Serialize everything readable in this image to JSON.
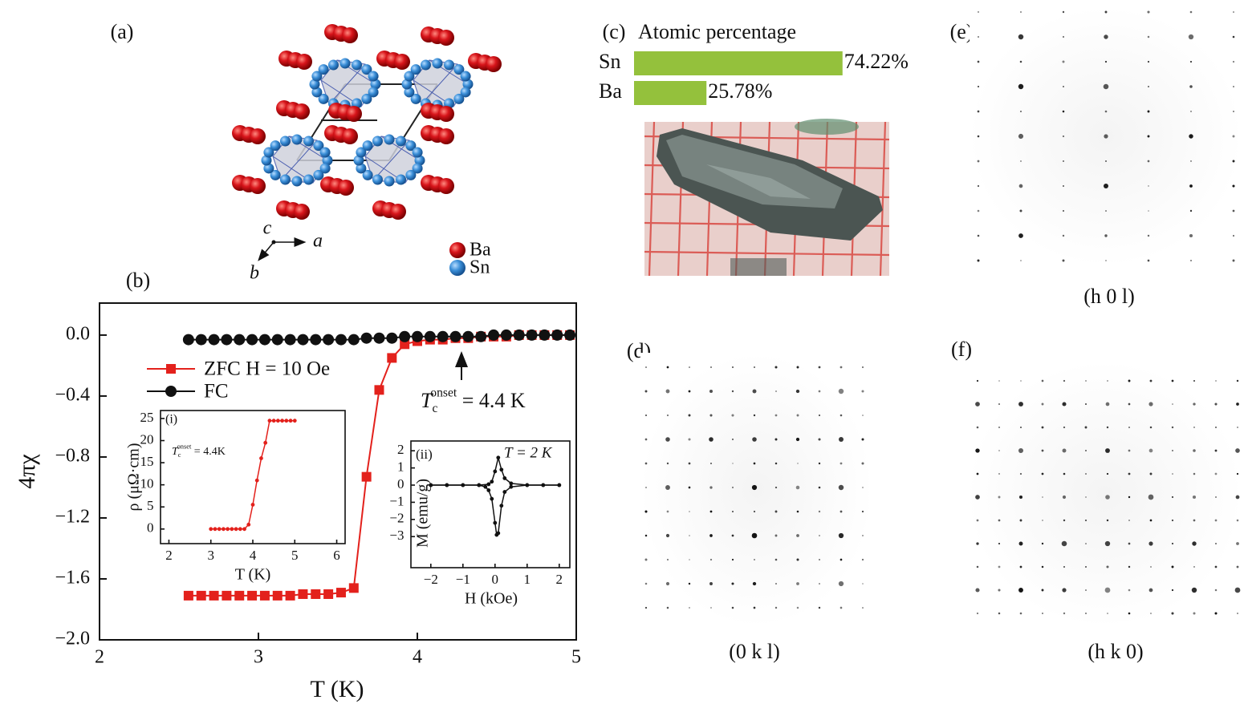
{
  "chart_data": [
    {
      "type": "line",
      "x_label": "T (K)",
      "y_label": "4πχ",
      "x": [
        2.56,
        2.64,
        2.72,
        2.8,
        2.88,
        2.96,
        3.04,
        3.12,
        3.2,
        3.28,
        3.36,
        3.44,
        3.52,
        3.6,
        3.68,
        3.76,
        3.84,
        3.92,
        4.0,
        4.08,
        4.16,
        4.24,
        4.32,
        4.4,
        4.48,
        4.56,
        4.64,
        4.72,
        4.8,
        4.88,
        4.96
      ],
      "series": [
        {
          "name": "ZFC H = 10 Oe",
          "color": "#e3211c",
          "marker": "square",
          "values": [
            -1.71,
            -1.71,
            -1.71,
            -1.71,
            -1.71,
            -1.71,
            -1.71,
            -1.71,
            -1.71,
            -1.7,
            -1.7,
            -1.7,
            -1.69,
            -1.66,
            -0.93,
            -0.36,
            -0.15,
            -0.06,
            -0.04,
            -0.03,
            -0.03,
            -0.02,
            -0.02,
            -0.01,
            -0.01,
            -0.01,
            0.0,
            0.0,
            0.0,
            0.0,
            0.0
          ]
        },
        {
          "name": "FC",
          "color": "#111111",
          "marker": "circle",
          "values": [
            -0.03,
            -0.03,
            -0.03,
            -0.03,
            -0.03,
            -0.03,
            -0.03,
            -0.03,
            -0.03,
            -0.03,
            -0.03,
            -0.03,
            -0.03,
            -0.03,
            -0.02,
            -0.02,
            -0.02,
            -0.01,
            -0.01,
            -0.01,
            -0.01,
            -0.01,
            -0.01,
            -0.01,
            0.0,
            0.0,
            0.0,
            0.0,
            0.0,
            0.0,
            0.0
          ]
        }
      ],
      "xlim": [
        2,
        5
      ],
      "ylim": [
        -2.0,
        0.21
      ],
      "xticks": [
        2,
        3,
        4,
        5
      ],
      "yticks": [
        {
          "value": 0.0,
          "label": "0.0"
        },
        {
          "value": -0.4,
          "label": "−0.4"
        },
        {
          "value": -0.8,
          "label": "−0.8"
        },
        {
          "value": -1.2,
          "label": "−1.2"
        },
        {
          "value": -1.6,
          "label": "−1.6"
        },
        {
          "value": -2.0,
          "label": "−2.0"
        }
      ],
      "legend": "upper left",
      "annotation": {
        "symbol": "T",
        "subscript": "c",
        "superscript": "onset",
        "text": " = 4.4 K"
      }
    },
    {
      "type": "line",
      "label": "(i)",
      "x_label": "T (K)",
      "y_label": "ρ (μΩ·cm)",
      "x": [
        3.0,
        3.1,
        3.2,
        3.3,
        3.4,
        3.5,
        3.6,
        3.7,
        3.8,
        3.9,
        4.0,
        4.1,
        4.2,
        4.3,
        4.4,
        4.5,
        4.6,
        4.7,
        4.8,
        4.9,
        5.0
      ],
      "series": [
        {
          "color": "#e3211c",
          "marker": "dot",
          "values": [
            0,
            0,
            0,
            0,
            0,
            0,
            0,
            0,
            0,
            1,
            5.5,
            11,
            16,
            19.5,
            24.5,
            24.5,
            24.5,
            24.5,
            24.5,
            24.5,
            24.5
          ]
        }
      ],
      "xlim": [
        1.8,
        6.2
      ],
      "ylim": [
        -3.3,
        26.8
      ],
      "xticks": [
        2,
        3,
        4,
        5,
        6
      ],
      "yticks": [
        0,
        5,
        10,
        15,
        20,
        25
      ],
      "annotation": {
        "symbol": "T",
        "subscript": "c",
        "superscript": "onset",
        "text": " = 4.4K"
      }
    },
    {
      "type": "line",
      "label": "(ii)",
      "note": "T = 2 K",
      "x_label": "H (kOe)",
      "y_label": "M (emu/g)",
      "series": [
        {
          "color": "#111111",
          "marker": "dot",
          "x": [
            -2,
            -1.5,
            -1,
            -0.5,
            -0.3,
            -0.2,
            -0.1,
            0,
            0.05,
            0.1,
            0.2,
            0.3,
            0.5,
            1,
            1.5,
            2
          ],
          "values": [
            0,
            0,
            0,
            0,
            -0.1,
            -0.3,
            -0.8,
            -2.2,
            -2.9,
            -2.8,
            -1.2,
            -0.4,
            -0.1,
            0,
            0,
            0
          ]
        },
        {
          "color": "#111111",
          "marker": "dot",
          "x": [
            2,
            1.5,
            1,
            0.5,
            0.3,
            0.2,
            0.1,
            0,
            -0.1,
            -0.2,
            -0.5,
            -1,
            -1.5,
            -2
          ],
          "values": [
            0,
            0,
            0,
            0.1,
            0.4,
            0.9,
            1.6,
            0.8,
            0.2,
            0.05,
            0,
            0,
            0,
            0
          ]
        }
      ],
      "xlim": [
        -2.62,
        2.33
      ],
      "ylim": [
        -4.81,
        2.57
      ],
      "xticks": [
        {
          "value": -2,
          "label": "−2"
        },
        {
          "value": -1,
          "label": "−1"
        },
        0,
        1,
        2
      ],
      "yticks": [
        2,
        1,
        0,
        {
          "value": -1,
          "label": "−1"
        },
        {
          "value": -2,
          "label": "−2"
        },
        {
          "value": -3,
          "label": "−3"
        }
      ]
    },
    {
      "type": "hbar",
      "title": "Atomic percentage",
      "categories": [
        "Sn",
        "Ba"
      ],
      "values": [
        74.22,
        25.78
      ],
      "value_labels": [
        "74.22%",
        "25.78%"
      ],
      "color": "#94c13c"
    }
  ],
  "figure": {
    "panel_labels": [
      "(a)",
      "(b)",
      "(c)",
      "(d)",
      "(e)",
      "(f)"
    ],
    "atoms": [
      "Ba",
      "Sn"
    ],
    "axes": [
      "c",
      "a",
      "b"
    ],
    "diffraction": [
      "(h 0 l)",
      "(0 k l)",
      "(h k 0)"
    ]
  }
}
